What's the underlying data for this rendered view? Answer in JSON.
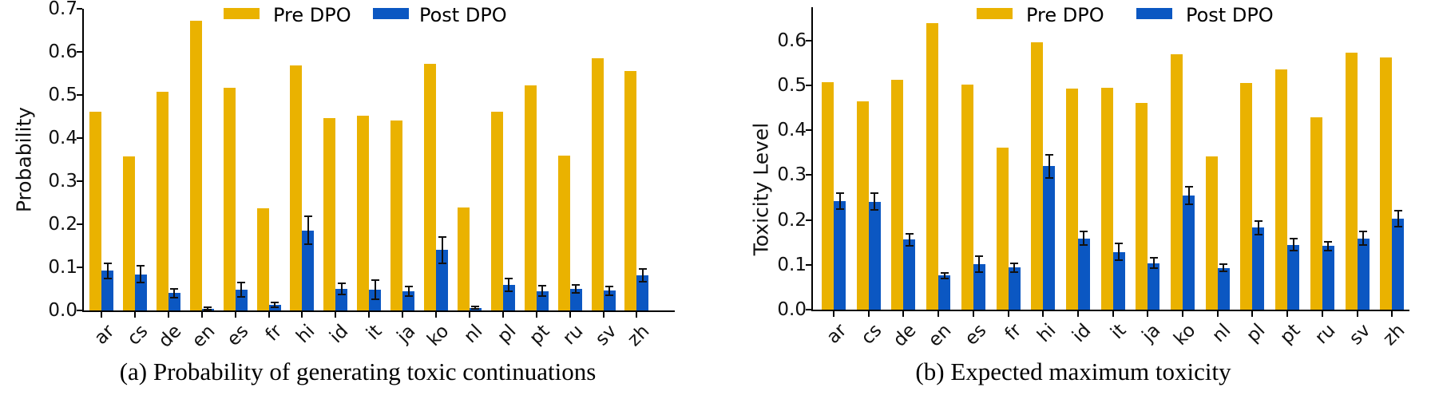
{
  "chart_data": [
    {
      "type": "bar",
      "title": "(a) Probability of generating toxic continuations",
      "xlabel": "",
      "ylabel": "Probability",
      "categories": [
        "ar",
        "cs",
        "de",
        "en",
        "es",
        "fr",
        "hi",
        "id",
        "it",
        "ja",
        "ko",
        "nl",
        "pl",
        "pt",
        "ru",
        "sv",
        "zh"
      ],
      "ylim": [
        0,
        0.7
      ],
      "ytick_labels": [
        "0.0",
        "0.1",
        "0.2",
        "0.3",
        "0.4",
        "0.5",
        "0.6",
        "0.7"
      ],
      "grid": false,
      "legend_position": "top",
      "series": [
        {
          "name": "Pre DPO",
          "color": "#EAB200",
          "values": [
            0.462,
            0.358,
            0.507,
            0.673,
            0.516,
            0.237,
            0.568,
            0.447,
            0.452,
            0.441,
            0.572,
            0.238,
            0.462,
            0.523,
            0.359,
            0.586,
            0.555
          ]
        },
        {
          "name": "Post DPO",
          "color": "#0B57C2",
          "values": [
            0.092,
            0.084,
            0.04,
            0.004,
            0.048,
            0.013,
            0.186,
            0.05,
            0.048,
            0.044,
            0.14,
            0.006,
            0.06,
            0.045,
            0.05,
            0.046,
            0.081
          ],
          "errors": [
            0.018,
            0.02,
            0.01,
            0.003,
            0.016,
            0.005,
            0.033,
            0.013,
            0.022,
            0.011,
            0.03,
            0.003,
            0.015,
            0.012,
            0.01,
            0.01,
            0.015
          ]
        }
      ]
    },
    {
      "type": "bar",
      "title": "(b) Expected maximum toxicity",
      "xlabel": "",
      "ylabel": "Toxicity Level",
      "categories": [
        "ar",
        "cs",
        "de",
        "en",
        "es",
        "fr",
        "hi",
        "id",
        "it",
        "ja",
        "ko",
        "nl",
        "pl",
        "pt",
        "ru",
        "sv",
        "zh"
      ],
      "ylim": [
        0,
        0.675
      ],
      "ytick_labels": [
        "0.0",
        "0.1",
        "0.2",
        "0.3",
        "0.4",
        "0.5",
        "0.6"
      ],
      "grid": false,
      "legend_position": "top",
      "series": [
        {
          "name": "Pre DPO",
          "color": "#EAB200",
          "values": [
            0.508,
            0.464,
            0.512,
            0.639,
            0.502,
            0.361,
            0.596,
            0.493,
            0.495,
            0.461,
            0.57,
            0.341,
            0.505,
            0.536,
            0.428,
            0.573,
            0.563
          ]
        },
        {
          "name": "Post DPO",
          "color": "#0B57C2",
          "values": [
            0.242,
            0.241,
            0.156,
            0.076,
            0.102,
            0.094,
            0.32,
            0.159,
            0.129,
            0.104,
            0.254,
            0.093,
            0.183,
            0.145,
            0.142,
            0.159,
            0.203
          ],
          "errors": [
            0.017,
            0.019,
            0.013,
            0.006,
            0.018,
            0.01,
            0.026,
            0.015,
            0.018,
            0.012,
            0.02,
            0.008,
            0.015,
            0.013,
            0.01,
            0.015,
            0.018
          ]
        }
      ]
    }
  ]
}
